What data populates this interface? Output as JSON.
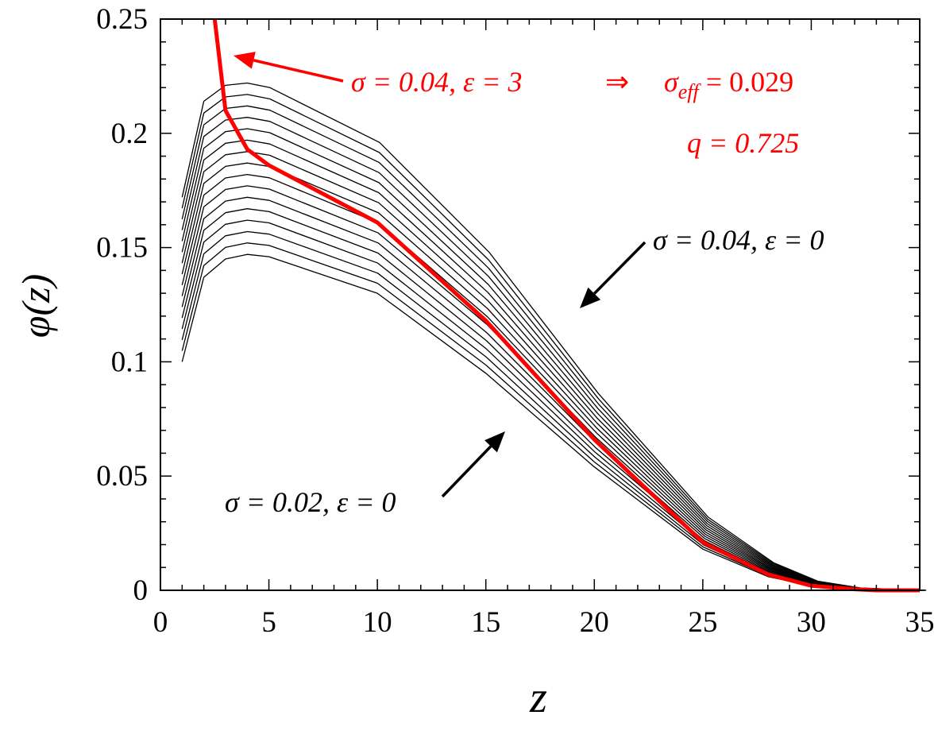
{
  "chart_data": {
    "type": "line",
    "xlabel": "z",
    "ylabel": "φ(z)",
    "xlim": [
      0,
      35
    ],
    "ylim": [
      0,
      0.25
    ],
    "x_ticks": [
      "0",
      "5",
      "10",
      "15",
      "20",
      "25",
      "30",
      "35"
    ],
    "y_ticks": [
      "0",
      "0.05",
      "0.1",
      "0.15",
      "0.2",
      "0.25"
    ],
    "grid": false,
    "black_curves": {
      "count": 16,
      "sigma_range": [
        0.02,
        0.04
      ],
      "epsilon": 0,
      "color": "#000000"
    },
    "series": [
      {
        "sigma": 0.02,
        "epsilon": 0,
        "x": [
          1,
          2,
          3,
          4,
          5,
          10,
          15,
          20,
          25,
          28,
          30,
          32,
          35
        ],
        "y": [
          0.1,
          0.137,
          0.145,
          0.147,
          0.146,
          0.13,
          0.095,
          0.054,
          0.018,
          0.006,
          0.002,
          0.0003,
          0
        ]
      },
      {
        "sigma": 0.04,
        "epsilon": 0,
        "x": [
          1,
          2,
          3,
          4,
          5,
          10,
          15,
          20,
          25,
          28,
          30,
          32,
          35
        ],
        "y": [
          0.172,
          0.214,
          0.221,
          0.222,
          0.22,
          0.196,
          0.148,
          0.086,
          0.032,
          0.012,
          0.004,
          0.001,
          0
        ]
      },
      {
        "name": "σ = 0.04, ε = 3",
        "sigma": 0.04,
        "epsilon": 3,
        "color": "#ff0000",
        "x": [
          2.5,
          3,
          4,
          5,
          10,
          15,
          20,
          25,
          28,
          30,
          32,
          33,
          35
        ],
        "y": [
          0.25,
          0.21,
          0.193,
          0.186,
          0.161,
          0.118,
          0.066,
          0.021,
          0.007,
          0.002,
          0.0005,
          0,
          0
        ]
      }
    ],
    "annotations": {
      "red_line1_left": "σ = 0.04, ε = 3",
      "red_arrow_symbol": "⇒",
      "red_sigma": "σ",
      "red_eff": "eff",
      "red_eq": " = 0.029",
      "red_line2": "q = 0.725",
      "black_top": "σ = 0.04, ε = 0",
      "black_bottom": "σ = 0.02, ε = 0"
    }
  }
}
